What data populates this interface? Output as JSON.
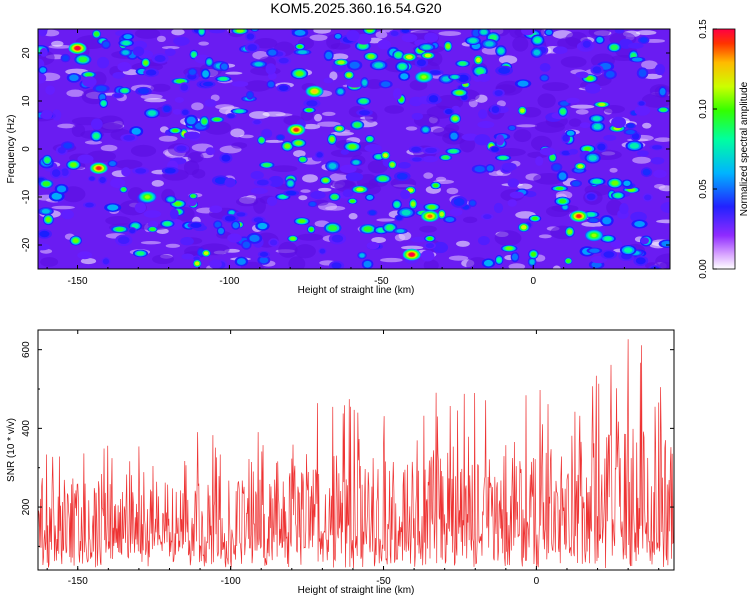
{
  "title": "KOM5.2025.360.16.54.G20",
  "colors": {
    "line": "#ee3333",
    "background": "#ffffff",
    "axis": "#000000"
  },
  "chart_data": [
    {
      "type": "heatmap",
      "name": "spectral-heatmap",
      "xlabel": "Height of straight line (km)",
      "ylabel": "Frequency (Hz)",
      "xlim": [
        -163,
        45
      ],
      "ylim": [
        -25,
        25
      ],
      "x_ticks": [
        -150,
        -100,
        -50,
        0
      ],
      "y_ticks": [
        -20,
        -10,
        0,
        10,
        20
      ],
      "colorbar": {
        "label": "Normalized spectral amplitude",
        "range": [
          0,
          0.15
        ],
        "ticks": [
          "0.00",
          "0.05",
          "0.10",
          "0.15"
        ],
        "colors": [
          "#ffffff",
          "#cc66ff",
          "#7a1fff",
          "#1a1aff",
          "#00aaff",
          "#00ff99",
          "#33ff00",
          "#ccff00",
          "#ffcc00",
          "#ff3300",
          "#ff0044"
        ]
      },
      "peaks": [
        {
          "x": -150,
          "y": 21,
          "v": 0.15
        },
        {
          "x": -143,
          "y": -4,
          "v": 0.14
        },
        {
          "x": -78,
          "y": 4,
          "v": 0.14
        },
        {
          "x": -40,
          "y": -22,
          "v": 0.15
        },
        {
          "x": -34,
          "y": -14,
          "v": 0.13
        },
        {
          "x": 15,
          "y": -14,
          "v": 0.14
        },
        {
          "x": -72,
          "y": 12,
          "v": 0.12
        },
        {
          "x": -36,
          "y": 15,
          "v": 0.1
        },
        {
          "x": 20,
          "y": -18,
          "v": 0.1
        },
        {
          "x": -127,
          "y": -10,
          "v": 0.1
        }
      ]
    },
    {
      "type": "line",
      "name": "snr-line",
      "xlabel": "Height of straight line (km)",
      "ylabel": "SNR (10 * v/v)",
      "xlim": [
        -163,
        45
      ],
      "ylim": [
        40,
        650
      ],
      "x_ticks": [
        -150,
        -100,
        -50,
        0
      ],
      "y_ticks": [
        200,
        400,
        600
      ],
      "series": [
        {
          "name": "SNR",
          "color": "#ee3333",
          "x_start": -163,
          "x_step": 0.2,
          "baseline_start": 120,
          "baseline_end": 170,
          "envelope": [
            {
              "x": -160,
              "y": 370
            },
            {
              "x": -128,
              "y": 375
            },
            {
              "x": -85,
              "y": 415
            },
            {
              "x": -77,
              "y": 510
            },
            {
              "x": -51,
              "y": 480
            },
            {
              "x": -2,
              "y": 510
            },
            {
              "x": 32,
              "y": 645
            },
            {
              "x": 44,
              "y": 520
            }
          ]
        }
      ]
    }
  ]
}
